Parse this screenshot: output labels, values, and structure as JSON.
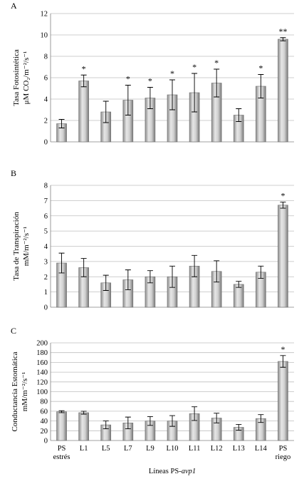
{
  "figure": {
    "xlabel_prefix": "Líneas PS-",
    "xlabel_italic": "avp1"
  },
  "chart_data": [
    {
      "type": "bar",
      "panel": "A",
      "ylabel_lines": [
        "Tasa Fotosintética",
        "μM CO₂/m⁻²/s⁻¹"
      ],
      "ylim": [
        0,
        12
      ],
      "yticks": [
        0,
        2,
        4,
        6,
        8,
        10,
        12
      ],
      "grid": true,
      "categories": [
        "PS estrés",
        "L1",
        "L5",
        "L7",
        "L9",
        "L10",
        "L11",
        "L12",
        "L13",
        "L14",
        "PS riego"
      ],
      "values": [
        1.7,
        5.7,
        2.8,
        3.9,
        4.1,
        4.4,
        4.6,
        5.5,
        2.5,
        5.2,
        9.6
      ],
      "errors": [
        0.4,
        0.55,
        1.0,
        1.4,
        1.0,
        1.4,
        1.8,
        1.3,
        0.6,
        1.1,
        0.15
      ],
      "significance": [
        "",
        "*",
        "",
        "*",
        "*",
        "*",
        "*",
        "*",
        "",
        "*",
        "**"
      ]
    },
    {
      "type": "bar",
      "panel": "B",
      "ylabel_lines": [
        "Tasa de Transpiración",
        "mM/m⁻²/s⁻¹"
      ],
      "ylim": [
        0,
        8
      ],
      "yticks": [
        0,
        1,
        2,
        3,
        4,
        5,
        6,
        7,
        8
      ],
      "grid": true,
      "categories": [
        "PS estrés",
        "L1",
        "L5",
        "L7",
        "L9",
        "L10",
        "L11",
        "L12",
        "L13",
        "L14",
        "PS riego"
      ],
      "values": [
        2.9,
        2.6,
        1.6,
        1.8,
        2.0,
        2.0,
        2.7,
        2.35,
        1.5,
        2.3,
        6.7
      ],
      "errors": [
        0.65,
        0.6,
        0.5,
        0.65,
        0.4,
        0.7,
        0.7,
        0.7,
        0.2,
        0.4,
        0.2
      ],
      "significance": [
        "",
        "",
        "",
        "",
        "",
        "",
        "",
        "",
        "",
        "",
        "*"
      ]
    },
    {
      "type": "bar",
      "panel": "C",
      "ylabel_lines": [
        "Conductancia Estomática",
        "mM/m⁻²/s⁻¹"
      ],
      "ylim": [
        0,
        200
      ],
      "yticks": [
        0,
        20,
        40,
        60,
        80,
        100,
        120,
        140,
        160,
        180,
        200
      ],
      "grid": true,
      "categories": [
        "PS estrés",
        "L1",
        "L5",
        "L7",
        "L9",
        "L10",
        "L11",
        "L12",
        "L13",
        "L14",
        "PS riego"
      ],
      "values": [
        59,
        57,
        32,
        36,
        40,
        40,
        55,
        46,
        27,
        45,
        162
      ],
      "errors": [
        2,
        3,
        8,
        12,
        9,
        11,
        14,
        10,
        6,
        8,
        12
      ],
      "significance": [
        "",
        "",
        "",
        "",
        "",
        "",
        "",
        "",
        "",
        "",
        "*"
      ]
    }
  ]
}
